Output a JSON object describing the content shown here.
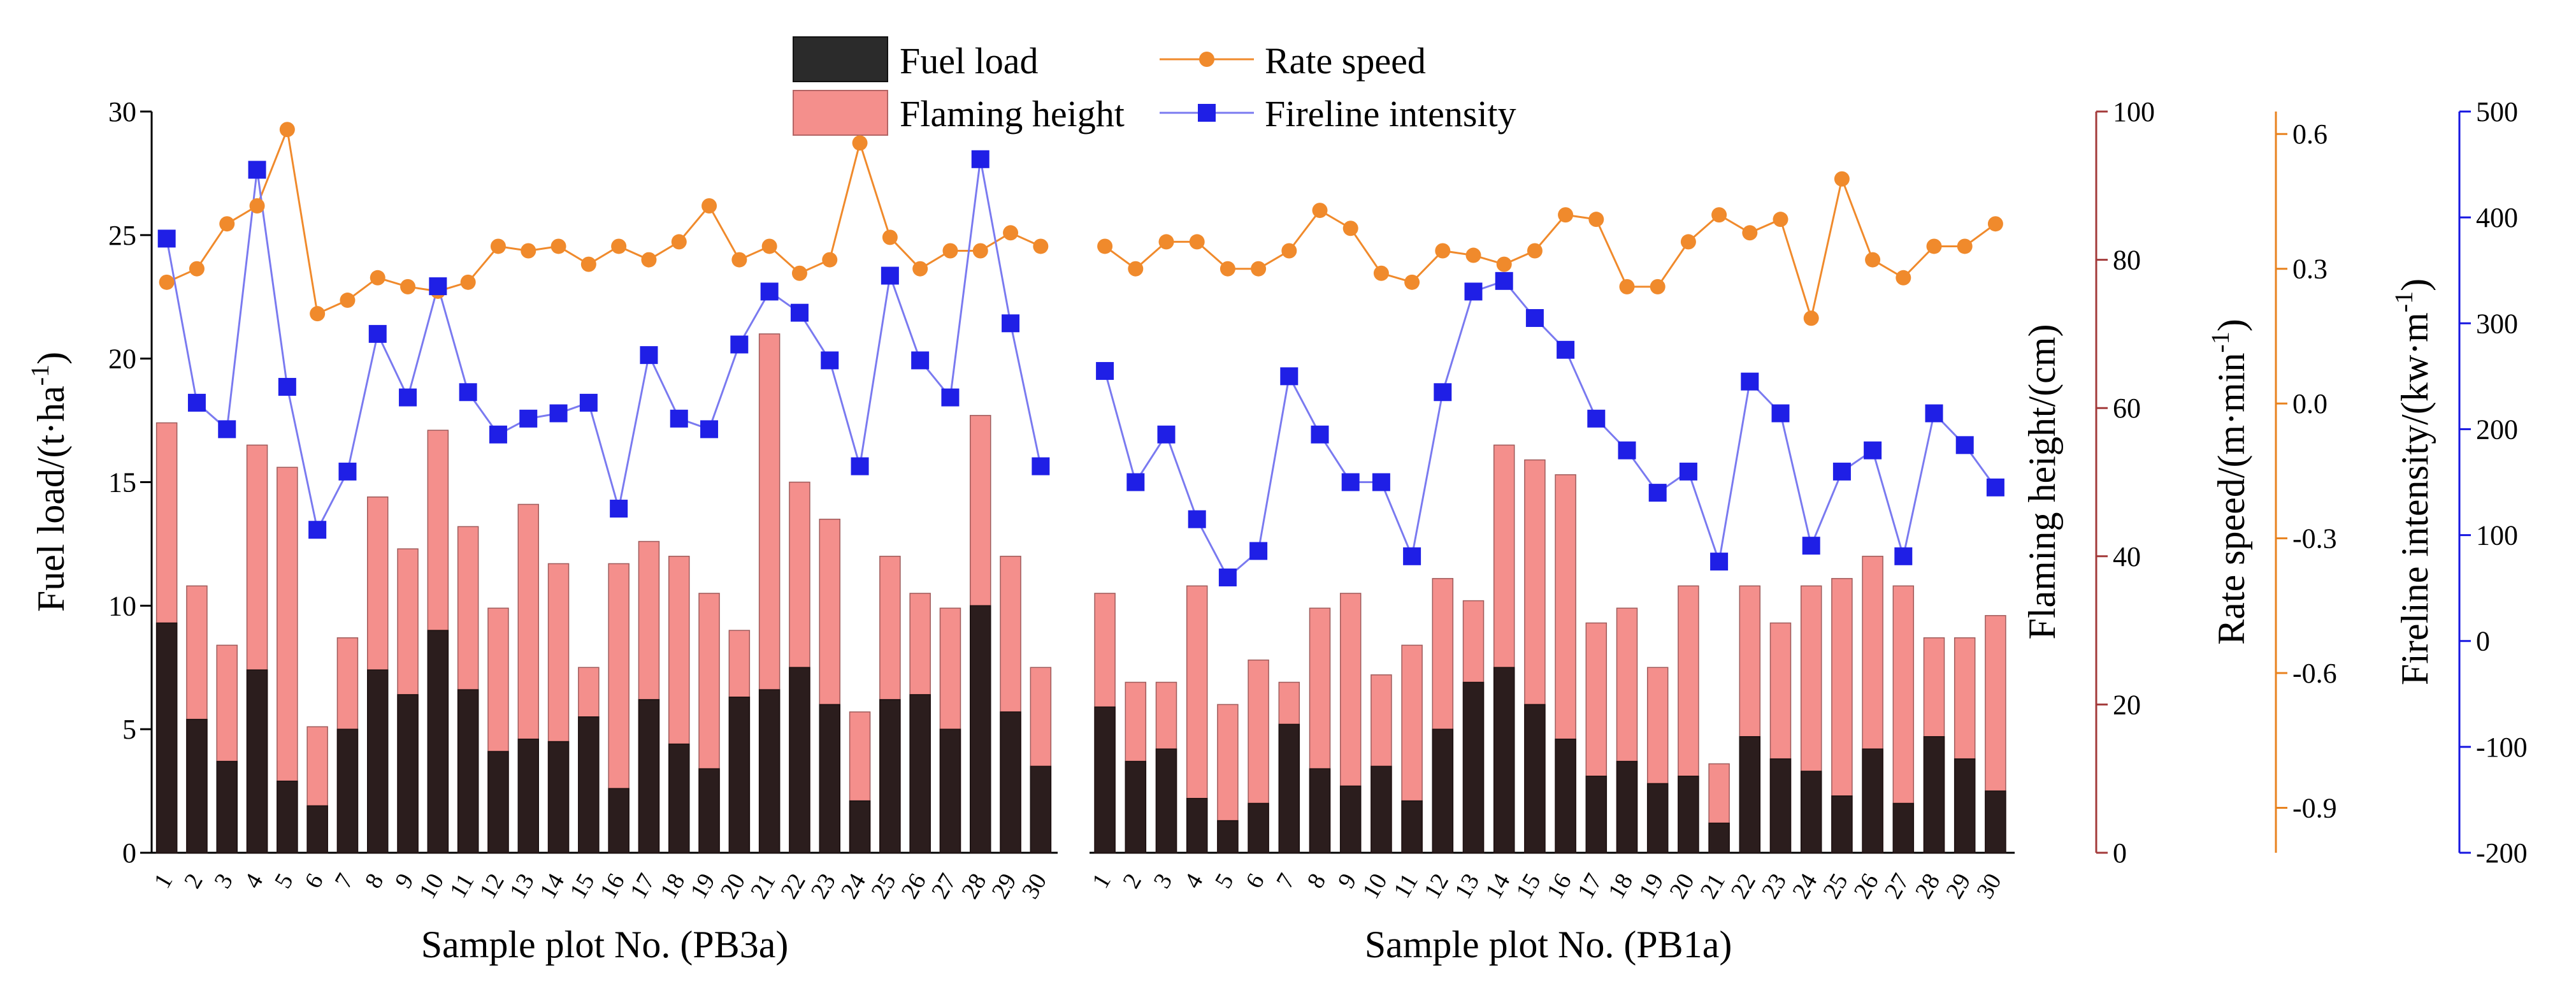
{
  "chart_data": {
    "type": "bar",
    "legend": {
      "fuel_load": "Fuel load",
      "flaming_height": "Flaming height",
      "rate_speed": "Rate speed",
      "fireline_intensity": "Fireline intensity"
    },
    "colors": {
      "fuel_load": "#2b1d1d",
      "flaming_height": "#f48f8c",
      "rate_speed": "#f08a2c",
      "fireline_intensity": "#1f1fe6",
      "flaming_axis": "#a33a3a",
      "rate_axis": "#e8821e",
      "fireline_axis": "#1515e0"
    },
    "axes": {
      "fuel_load": {
        "label_main": "Fuel load/(t·ha",
        "label_sup": "-1",
        "label_end": ")",
        "range": [
          0,
          30
        ],
        "ticks": [
          "0",
          "5",
          "10",
          "15",
          "20",
          "25",
          "30"
        ]
      },
      "flaming_height": {
        "label": "Flaming height/(cm)",
        "range": [
          0,
          100
        ],
        "ticks": [
          "0",
          "20",
          "40",
          "60",
          "80",
          "100"
        ]
      },
      "rate_speed": {
        "label_main": "Rate speed/(m·min",
        "label_sup": "-1",
        "label_end": ")",
        "range": [
          -1.0,
          0.65
        ],
        "ticks": [
          "-0.9",
          "-0.6",
          "-0.3",
          "0.0",
          "0.3",
          "0.6"
        ]
      },
      "fireline_intensity": {
        "label_main": "Fireline intensity/(kw·m",
        "label_sup": "-1",
        "label_end": ")",
        "range": [
          -200,
          500
        ],
        "ticks": [
          "-200",
          "-100",
          "0",
          "100",
          "200",
          "300",
          "400",
          "500"
        ]
      }
    },
    "panels": [
      {
        "xlabel": "Sample plot No. (PB3a)",
        "categories": [
          "1",
          "2",
          "3",
          "4",
          "5",
          "6",
          "7",
          "8",
          "9",
          "10",
          "11",
          "12",
          "13",
          "14",
          "15",
          "16",
          "17",
          "18",
          "19",
          "20",
          "21",
          "22",
          "23",
          "24",
          "25",
          "26",
          "27",
          "28",
          "29",
          "30"
        ],
        "fuel_load": [
          9.3,
          5.4,
          3.7,
          7.4,
          2.9,
          1.9,
          5.0,
          7.4,
          6.4,
          9.0,
          6.6,
          4.1,
          4.6,
          4.5,
          5.5,
          2.6,
          6.2,
          4.4,
          3.4,
          6.3,
          6.6,
          7.5,
          6.0,
          2.1,
          6.2,
          6.4,
          5.0,
          10.0,
          5.7,
          3.5
        ],
        "flaming_height": [
          58,
          36,
          28,
          55,
          52,
          17,
          29,
          48,
          41,
          57,
          44,
          33,
          47,
          39,
          25,
          39,
          42,
          40,
          35,
          30,
          70,
          50,
          45,
          19,
          40,
          35,
          33,
          59,
          40,
          25
        ],
        "rate_speed": [
          0.27,
          0.3,
          0.4,
          0.44,
          0.61,
          0.2,
          0.23,
          0.28,
          0.26,
          0.25,
          0.27,
          0.35,
          0.34,
          0.35,
          0.31,
          0.35,
          0.32,
          0.36,
          0.44,
          0.32,
          0.35,
          0.29,
          0.32,
          0.58,
          0.37,
          0.3,
          0.34,
          0.34,
          0.38,
          0.35
        ],
        "fireline_intensity": [
          380,
          225,
          200,
          445,
          240,
          105,
          160,
          290,
          230,
          335,
          235,
          195,
          210,
          215,
          225,
          125,
          270,
          210,
          200,
          280,
          330,
          310,
          265,
          165,
          345,
          265,
          230,
          455,
          300,
          165
        ]
      },
      {
        "xlabel": "Sample plot No. (PB1a)",
        "categories": [
          "1",
          "2",
          "3",
          "4",
          "5",
          "6",
          "7",
          "8",
          "9",
          "10",
          "11",
          "12",
          "13",
          "14",
          "15",
          "16",
          "17",
          "18",
          "19",
          "20",
          "21",
          "22",
          "23",
          "24",
          "25",
          "26",
          "27",
          "28",
          "29",
          "30"
        ],
        "fuel_load": [
          5.9,
          3.7,
          4.2,
          2.2,
          1.3,
          2.0,
          5.2,
          3.4,
          2.7,
          3.5,
          2.1,
          5.0,
          6.9,
          7.5,
          6.0,
          4.6,
          3.1,
          3.7,
          2.8,
          3.1,
          1.2,
          4.7,
          3.8,
          3.3,
          2.3,
          4.2,
          2.0,
          4.7,
          3.8,
          2.5
        ],
        "flaming_height": [
          35,
          23,
          23,
          36,
          20,
          26,
          23,
          33,
          35,
          24,
          28,
          37,
          34,
          55,
          53,
          51,
          31,
          33,
          25,
          36,
          12,
          36,
          31,
          36,
          37,
          40,
          36,
          29,
          29,
          32
        ],
        "rate_speed": [
          0.35,
          0.3,
          0.36,
          0.36,
          0.3,
          0.3,
          0.34,
          0.43,
          0.39,
          0.29,
          0.27,
          0.34,
          0.33,
          0.31,
          0.34,
          0.42,
          0.41,
          0.26,
          0.26,
          0.36,
          0.42,
          0.38,
          0.41,
          0.19,
          0.5,
          0.32,
          0.28,
          0.35,
          0.35,
          0.4
        ],
        "fireline_intensity": [
          255,
          150,
          195,
          115,
          60,
          85,
          250,
          195,
          150,
          150,
          80,
          235,
          330,
          340,
          305,
          275,
          210,
          180,
          140,
          160,
          75,
          245,
          215,
          90,
          160,
          180,
          80,
          215,
          185,
          145
        ]
      }
    ]
  }
}
